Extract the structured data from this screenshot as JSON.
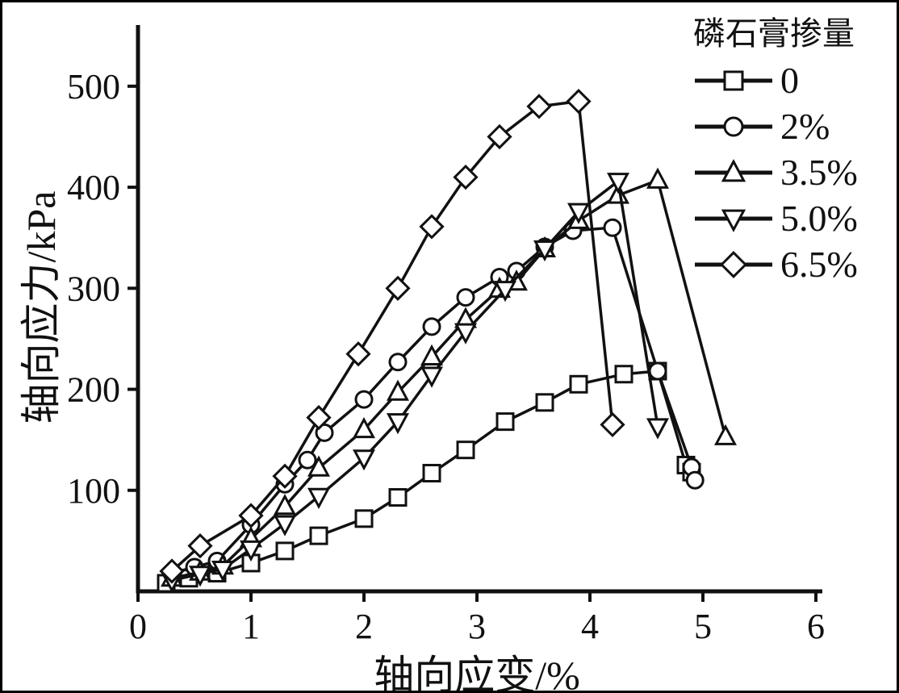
{
  "figure": {
    "background": "#ffffff",
    "border_color": "#000000"
  },
  "chart_data": {
    "type": "line",
    "title": "",
    "xlabel": "轴向应变/%",
    "ylabel": "轴向应力/kPa",
    "legend_title": "磷石膏掺量",
    "legend_position": "top-right",
    "grid": false,
    "line_color": "#111111",
    "marker_fill": "#ffffff",
    "xlim": [
      0,
      6
    ],
    "ylim": [
      0,
      555
    ],
    "xtick_values": [
      0,
      1,
      2,
      3,
      4,
      5,
      6
    ],
    "xtick_labels": [
      "0",
      "1",
      "2",
      "3",
      "4",
      "5",
      "6"
    ],
    "ytick_values": [
      100,
      200,
      300,
      400,
      500
    ],
    "ytick_labels": [
      "100",
      "200",
      "300",
      "400",
      "500"
    ],
    "series": [
      {
        "name": "0",
        "marker": "square",
        "points": [
          [
            0.25,
            8
          ],
          [
            0.45,
            13
          ],
          [
            0.7,
            18
          ],
          [
            1.0,
            28
          ],
          [
            1.3,
            40
          ],
          [
            1.6,
            55
          ],
          [
            2.0,
            72
          ],
          [
            2.3,
            93
          ],
          [
            2.6,
            117
          ],
          [
            2.9,
            140
          ],
          [
            3.25,
            168
          ],
          [
            3.6,
            187
          ],
          [
            3.9,
            205
          ],
          [
            4.3,
            215
          ],
          [
            4.6,
            218
          ],
          [
            4.85,
            125
          ],
          [
            4.9,
            118
          ]
        ]
      },
      {
        "name": "2%",
        "marker": "circle",
        "points": [
          [
            0.3,
            18
          ],
          [
            0.5,
            24
          ],
          [
            0.7,
            30
          ],
          [
            1.0,
            66
          ],
          [
            1.3,
            106
          ],
          [
            1.5,
            130
          ],
          [
            1.65,
            157
          ],
          [
            2.0,
            190
          ],
          [
            2.3,
            227
          ],
          [
            2.6,
            262
          ],
          [
            2.9,
            291
          ],
          [
            3.2,
            311
          ],
          [
            3.35,
            317
          ],
          [
            3.6,
            341
          ],
          [
            3.85,
            357
          ],
          [
            4.2,
            360
          ],
          [
            4.6,
            218
          ],
          [
            4.9,
            123
          ],
          [
            4.93,
            110
          ]
        ]
      },
      {
        "name": "3.5%",
        "marker": "triangle-up",
        "points": [
          [
            0.3,
            13
          ],
          [
            0.55,
            19
          ],
          [
            0.75,
            25
          ],
          [
            1.0,
            52
          ],
          [
            1.3,
            84
          ],
          [
            1.6,
            122
          ],
          [
            2.0,
            160
          ],
          [
            2.3,
            197
          ],
          [
            2.6,
            232
          ],
          [
            2.9,
            269
          ],
          [
            3.2,
            299
          ],
          [
            3.35,
            306
          ],
          [
            3.6,
            339
          ],
          [
            3.9,
            367
          ],
          [
            4.25,
            392
          ],
          [
            4.6,
            407
          ],
          [
            5.2,
            153
          ]
        ]
      },
      {
        "name": "5.0%",
        "marker": "triangle-down",
        "points": [
          [
            0.3,
            11
          ],
          [
            0.55,
            17
          ],
          [
            0.75,
            22
          ],
          [
            1.0,
            42
          ],
          [
            1.3,
            67
          ],
          [
            1.6,
            94
          ],
          [
            2.0,
            132
          ],
          [
            2.3,
            168
          ],
          [
            2.6,
            214
          ],
          [
            2.9,
            257
          ],
          [
            3.25,
            299
          ],
          [
            3.6,
            339
          ],
          [
            3.9,
            376
          ],
          [
            4.25,
            406
          ],
          [
            4.6,
            163
          ]
        ]
      },
      {
        "name": "6.5%",
        "marker": "diamond",
        "points": [
          [
            0.3,
            20
          ],
          [
            0.55,
            45
          ],
          [
            1.0,
            75
          ],
          [
            1.3,
            114
          ],
          [
            1.6,
            172
          ],
          [
            1.95,
            235
          ],
          [
            2.3,
            300
          ],
          [
            2.6,
            361
          ],
          [
            2.9,
            410
          ],
          [
            3.2,
            450
          ],
          [
            3.55,
            480
          ],
          [
            3.9,
            485
          ],
          [
            4.2,
            165
          ]
        ]
      }
    ]
  }
}
